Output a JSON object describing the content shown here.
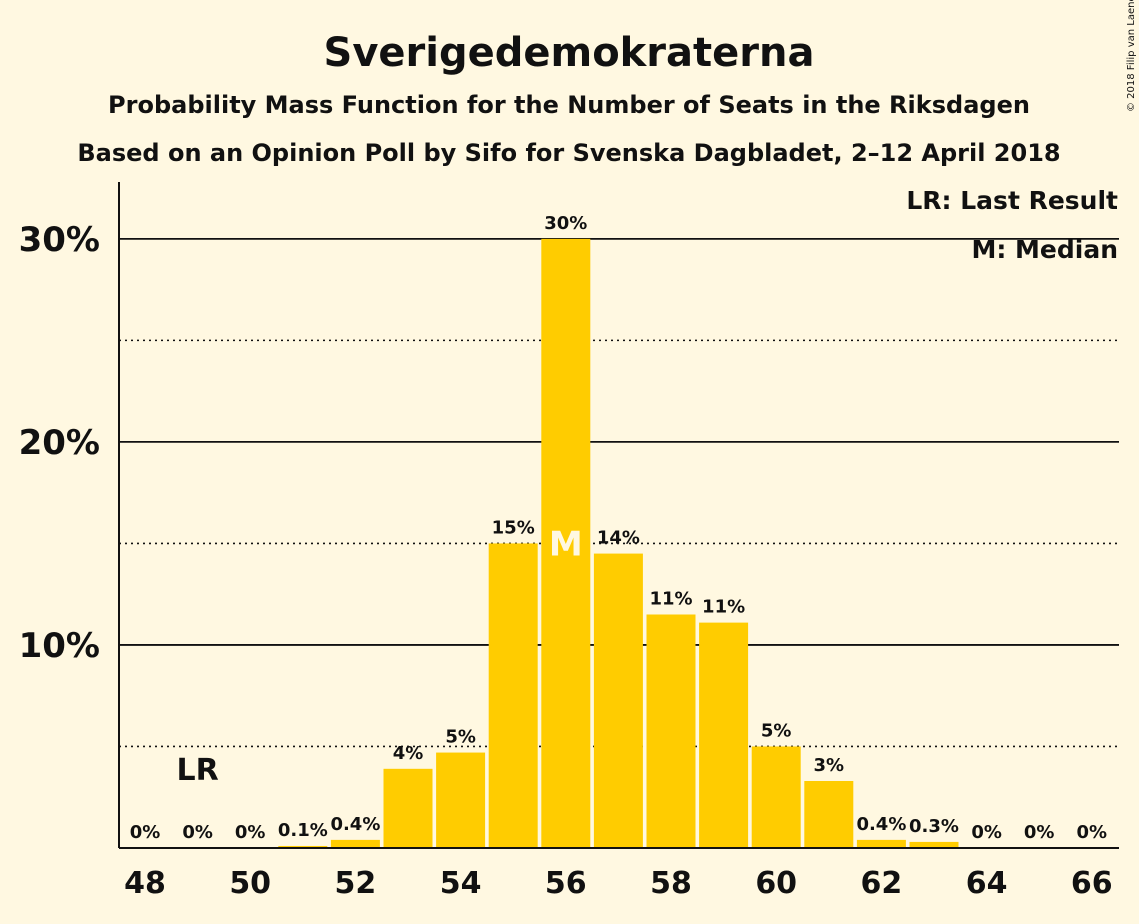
{
  "chart_data": {
    "type": "bar",
    "title": "Sverigedemokraterna",
    "subtitle": "Probability Mass Function for the Number of Seats in the Riksdagen",
    "subtitle2": "Based on an Opinion Poll by Sifo for Svenska Dagbladet, 2–12 April 2018",
    "copyright": "© 2018 Filip van Laenen",
    "x": [
      48,
      49,
      50,
      51,
      52,
      53,
      54,
      55,
      56,
      57,
      58,
      59,
      60,
      61,
      62,
      63,
      64,
      65,
      66
    ],
    "values": [
      0,
      0,
      0,
      0.1,
      0.4,
      3.9,
      4.7,
      15.0,
      30.0,
      14.5,
      11.5,
      11.1,
      5.0,
      3.3,
      0.4,
      0.3,
      0,
      0,
      0
    ],
    "data_labels": [
      "0%",
      "0%",
      "0%",
      "0.1%",
      "0.4%",
      "4%",
      "5%",
      "15%",
      "30%",
      "14%",
      "11%",
      "11%",
      "5%",
      "3%",
      "0.4%",
      "0.3%",
      "0%",
      "0%",
      "0%"
    ],
    "x_tick_labels": [
      "48",
      "50",
      "52",
      "54",
      "56",
      "58",
      "60",
      "62",
      "64",
      "66"
    ],
    "y_ticks": [
      10,
      20,
      30
    ],
    "y_tick_labels": [
      "10%",
      "20%",
      "30%"
    ],
    "y_minor_ticks": [
      5,
      15,
      25
    ],
    "ylim": [
      0,
      32.8
    ],
    "xlabel": "",
    "ylabel": "",
    "last_result": {
      "seat": 49,
      "label": "LR"
    },
    "median": {
      "seat": 56,
      "label": "M"
    },
    "legend": [
      "LR: Last Result",
      "M: Median"
    ],
    "legend_position": "top-right",
    "grid": true,
    "colors": {
      "bar": "#ffcc00",
      "background": "#fff8e1",
      "text": "#111111",
      "median_label": "#fff8e1"
    }
  }
}
